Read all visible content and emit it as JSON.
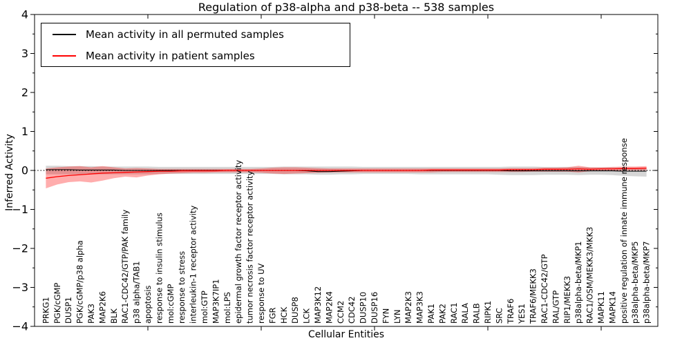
{
  "chart_data": {
    "type": "line",
    "title": "Regulation of p38-alpha and p38-beta -- 538 samples",
    "xlabel": "Cellular Entities",
    "ylabel": "Inferred Activity",
    "ylim": [
      -4,
      4
    ],
    "yticks": [
      4,
      3,
      2,
      1,
      0,
      -1,
      -2,
      -3,
      -4
    ],
    "ytick_labels": [
      "4",
      "3",
      "2",
      "1",
      "0",
      "−1",
      "−2",
      "−3",
      "−4"
    ],
    "y_minor_step": 0.5,
    "x_major_tick_positions": [
      10,
      20,
      30,
      40,
      50
    ],
    "grid": false,
    "zero_line": true,
    "legend_position": "upper left",
    "legend": [
      {
        "label": "Mean activity in all permuted samples",
        "color": "#000000"
      },
      {
        "label": "Mean activity in patient samples",
        "color": "#ff0000"
      }
    ],
    "categories": [
      "PRKG1",
      "PGK/cGMP",
      "DUSP1",
      "PGK/cGMP/p38 alpha",
      "PAK3",
      "MAP2K6",
      "BLK",
      "RAC1-CDC42/GTP/PAK family",
      "p38 alpha/TAB1",
      "apoptosis",
      "response to insulin stimulus",
      "mol:cGMP",
      "response to stress",
      "interleukin-1 receptor activity",
      "mol:GTP",
      "MAP3K7IP1",
      "mol:LPS",
      "epidermal growth factor receptor activity",
      "tumor necrosis factor receptor activity",
      "response to UV",
      "FGR",
      "HCK",
      "DUSP8",
      "LCK",
      "MAP3K12",
      "MAP2K4",
      "CCM2",
      "CDC42",
      "DUSP10",
      "DUSP16",
      "FYN",
      "LYN",
      "MAP2K3",
      "MAP3K3",
      "PAK1",
      "PAK2",
      "RAC1",
      "RALA",
      "RALB",
      "RIPK1",
      "SRC",
      "TRAF6",
      "YES1",
      "TRAF6/MEKK3",
      "RAC1-CDC42/GTP",
      "RAL/GTP",
      "RIP1/MEKK3",
      "p38alpha-beta/MKP1",
      "RAC1/OSM/MEKK3/MKK3",
      "MAPK11",
      "MAPK14",
      "positive regulation of innate immune response",
      "p38alpha-beta/MKP5",
      "p38alpha-beta/MKP7"
    ],
    "series": [
      {
        "name": "Mean activity in all permuted samples",
        "color": "#000000",
        "band_color": "#000000",
        "band_opacity": 0.16,
        "values": [
          0.02,
          0.02,
          0.02,
          0.01,
          0.01,
          0.01,
          0.01,
          0.0,
          0.0,
          0.0,
          0.0,
          0.0,
          0.0,
          0.0,
          0.0,
          0.0,
          0.0,
          0.0,
          0.0,
          0.0,
          0.0,
          0.0,
          0.0,
          -0.01,
          -0.03,
          -0.03,
          -0.02,
          -0.01,
          0.0,
          0.0,
          0.0,
          0.0,
          0.0,
          0.0,
          0.0,
          0.0,
          0.0,
          0.0,
          0.0,
          0.0,
          0.0,
          -0.01,
          -0.01,
          -0.01,
          -0.01,
          -0.01,
          -0.01,
          -0.01,
          -0.01,
          -0.01,
          -0.01,
          -0.02,
          -0.02,
          -0.02
        ],
        "band_lower": [
          -0.1,
          -0.1,
          -0.1,
          -0.1,
          -0.1,
          -0.1,
          -0.1,
          -0.1,
          -0.1,
          -0.1,
          -0.09,
          -0.09,
          -0.09,
          -0.09,
          -0.09,
          -0.09,
          -0.09,
          -0.09,
          -0.09,
          -0.09,
          -0.09,
          -0.1,
          -0.1,
          -0.1,
          -0.11,
          -0.11,
          -0.1,
          -0.1,
          -0.09,
          -0.09,
          -0.09,
          -0.09,
          -0.09,
          -0.1,
          -0.1,
          -0.1,
          -0.1,
          -0.1,
          -0.1,
          -0.1,
          -0.11,
          -0.12,
          -0.12,
          -0.12,
          -0.11,
          -0.11,
          -0.11,
          -0.12,
          -0.11,
          -0.11,
          -0.12,
          -0.14,
          -0.15,
          -0.16
        ],
        "band_upper": [
          0.12,
          0.12,
          0.11,
          0.11,
          0.11,
          0.1,
          0.1,
          0.1,
          0.1,
          0.1,
          0.09,
          0.09,
          0.09,
          0.09,
          0.09,
          0.09,
          0.09,
          0.09,
          0.09,
          0.09,
          0.09,
          0.1,
          0.1,
          0.1,
          0.1,
          0.1,
          0.1,
          0.1,
          0.09,
          0.09,
          0.09,
          0.09,
          0.09,
          0.09,
          0.09,
          0.09,
          0.09,
          0.09,
          0.09,
          0.09,
          0.09,
          0.1,
          0.1,
          0.1,
          0.09,
          0.09,
          0.09,
          0.09,
          0.08,
          0.08,
          0.08,
          0.07,
          0.07,
          0.07
        ]
      },
      {
        "name": "Mean activity in patient samples",
        "color": "#ff0000",
        "band_color": "#ff0000",
        "band_opacity": 0.32,
        "values": [
          -0.2,
          -0.16,
          -0.13,
          -0.11,
          -0.09,
          -0.07,
          -0.06,
          -0.05,
          -0.04,
          -0.03,
          -0.02,
          -0.02,
          -0.01,
          -0.01,
          -0.01,
          -0.01,
          0.0,
          0.0,
          0.0,
          0.0,
          0.0,
          0.0,
          0.0,
          0.0,
          0.0,
          0.0,
          0.0,
          0.0,
          0.0,
          0.0,
          0.0,
          0.0,
          0.0,
          0.0,
          0.01,
          0.01,
          0.01,
          0.01,
          0.01,
          0.01,
          0.01,
          0.02,
          0.02,
          0.02,
          0.03,
          0.03,
          0.03,
          0.04,
          0.03,
          0.04,
          0.04,
          0.05,
          0.05,
          0.06
        ],
        "band_lower": [
          -0.46,
          -0.36,
          -0.3,
          -0.28,
          -0.31,
          -0.26,
          -0.2,
          -0.16,
          -0.18,
          -0.13,
          -0.1,
          -0.08,
          -0.07,
          -0.06,
          -0.06,
          -0.05,
          -0.05,
          -0.05,
          -0.05,
          -0.06,
          -0.08,
          -0.09,
          -0.08,
          -0.07,
          -0.06,
          -0.05,
          -0.05,
          -0.05,
          -0.05,
          -0.05,
          -0.05,
          -0.05,
          -0.05,
          -0.05,
          -0.05,
          -0.04,
          -0.04,
          -0.04,
          -0.04,
          -0.04,
          -0.04,
          -0.04,
          -0.04,
          -0.03,
          -0.03,
          -0.03,
          -0.03,
          -0.05,
          -0.02,
          -0.01,
          -0.01,
          0.0,
          0.0,
          0.0
        ],
        "band_upper": [
          0.05,
          0.08,
          0.1,
          0.11,
          0.08,
          0.11,
          0.08,
          0.05,
          0.06,
          0.05,
          0.04,
          0.04,
          0.04,
          0.04,
          0.04,
          0.04,
          0.04,
          0.04,
          0.04,
          0.05,
          0.07,
          0.08,
          0.08,
          0.07,
          0.06,
          0.05,
          0.05,
          0.05,
          0.05,
          0.05,
          0.05,
          0.05,
          0.05,
          0.05,
          0.05,
          0.05,
          0.05,
          0.05,
          0.05,
          0.05,
          0.05,
          0.06,
          0.06,
          0.06,
          0.07,
          0.07,
          0.08,
          0.12,
          0.08,
          0.08,
          0.09,
          0.1,
          0.1,
          0.11
        ]
      }
    ]
  }
}
